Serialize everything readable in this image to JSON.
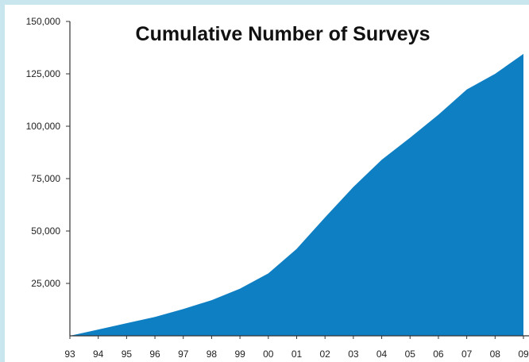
{
  "chart_data": {
    "type": "area",
    "title": "Cumulative Number of Surveys",
    "xlabel": "",
    "ylabel": "",
    "categories": [
      "93",
      "94",
      "95",
      "96",
      "97",
      "98",
      "99",
      "00",
      "01",
      "02",
      "03",
      "04",
      "05",
      "06",
      "07",
      "08",
      "09"
    ],
    "values": [
      0,
      3000,
      6000,
      9000,
      12800,
      17000,
      22500,
      29800,
      41500,
      56500,
      71000,
      84000,
      94500,
      105500,
      117500,
      125000,
      134500
    ],
    "ylim": [
      0,
      150000
    ],
    "yticks": [
      "150,000",
      "125,000",
      "100,000",
      "75,000",
      "50,000",
      "25,000"
    ],
    "ytick_values": [
      150000,
      125000,
      100000,
      75000,
      50000,
      25000
    ],
    "grid": false,
    "legend": "none",
    "colors": {
      "fill": "#0f7fc3",
      "background": "#ffffff",
      "frame": "#c9e6ee"
    }
  }
}
